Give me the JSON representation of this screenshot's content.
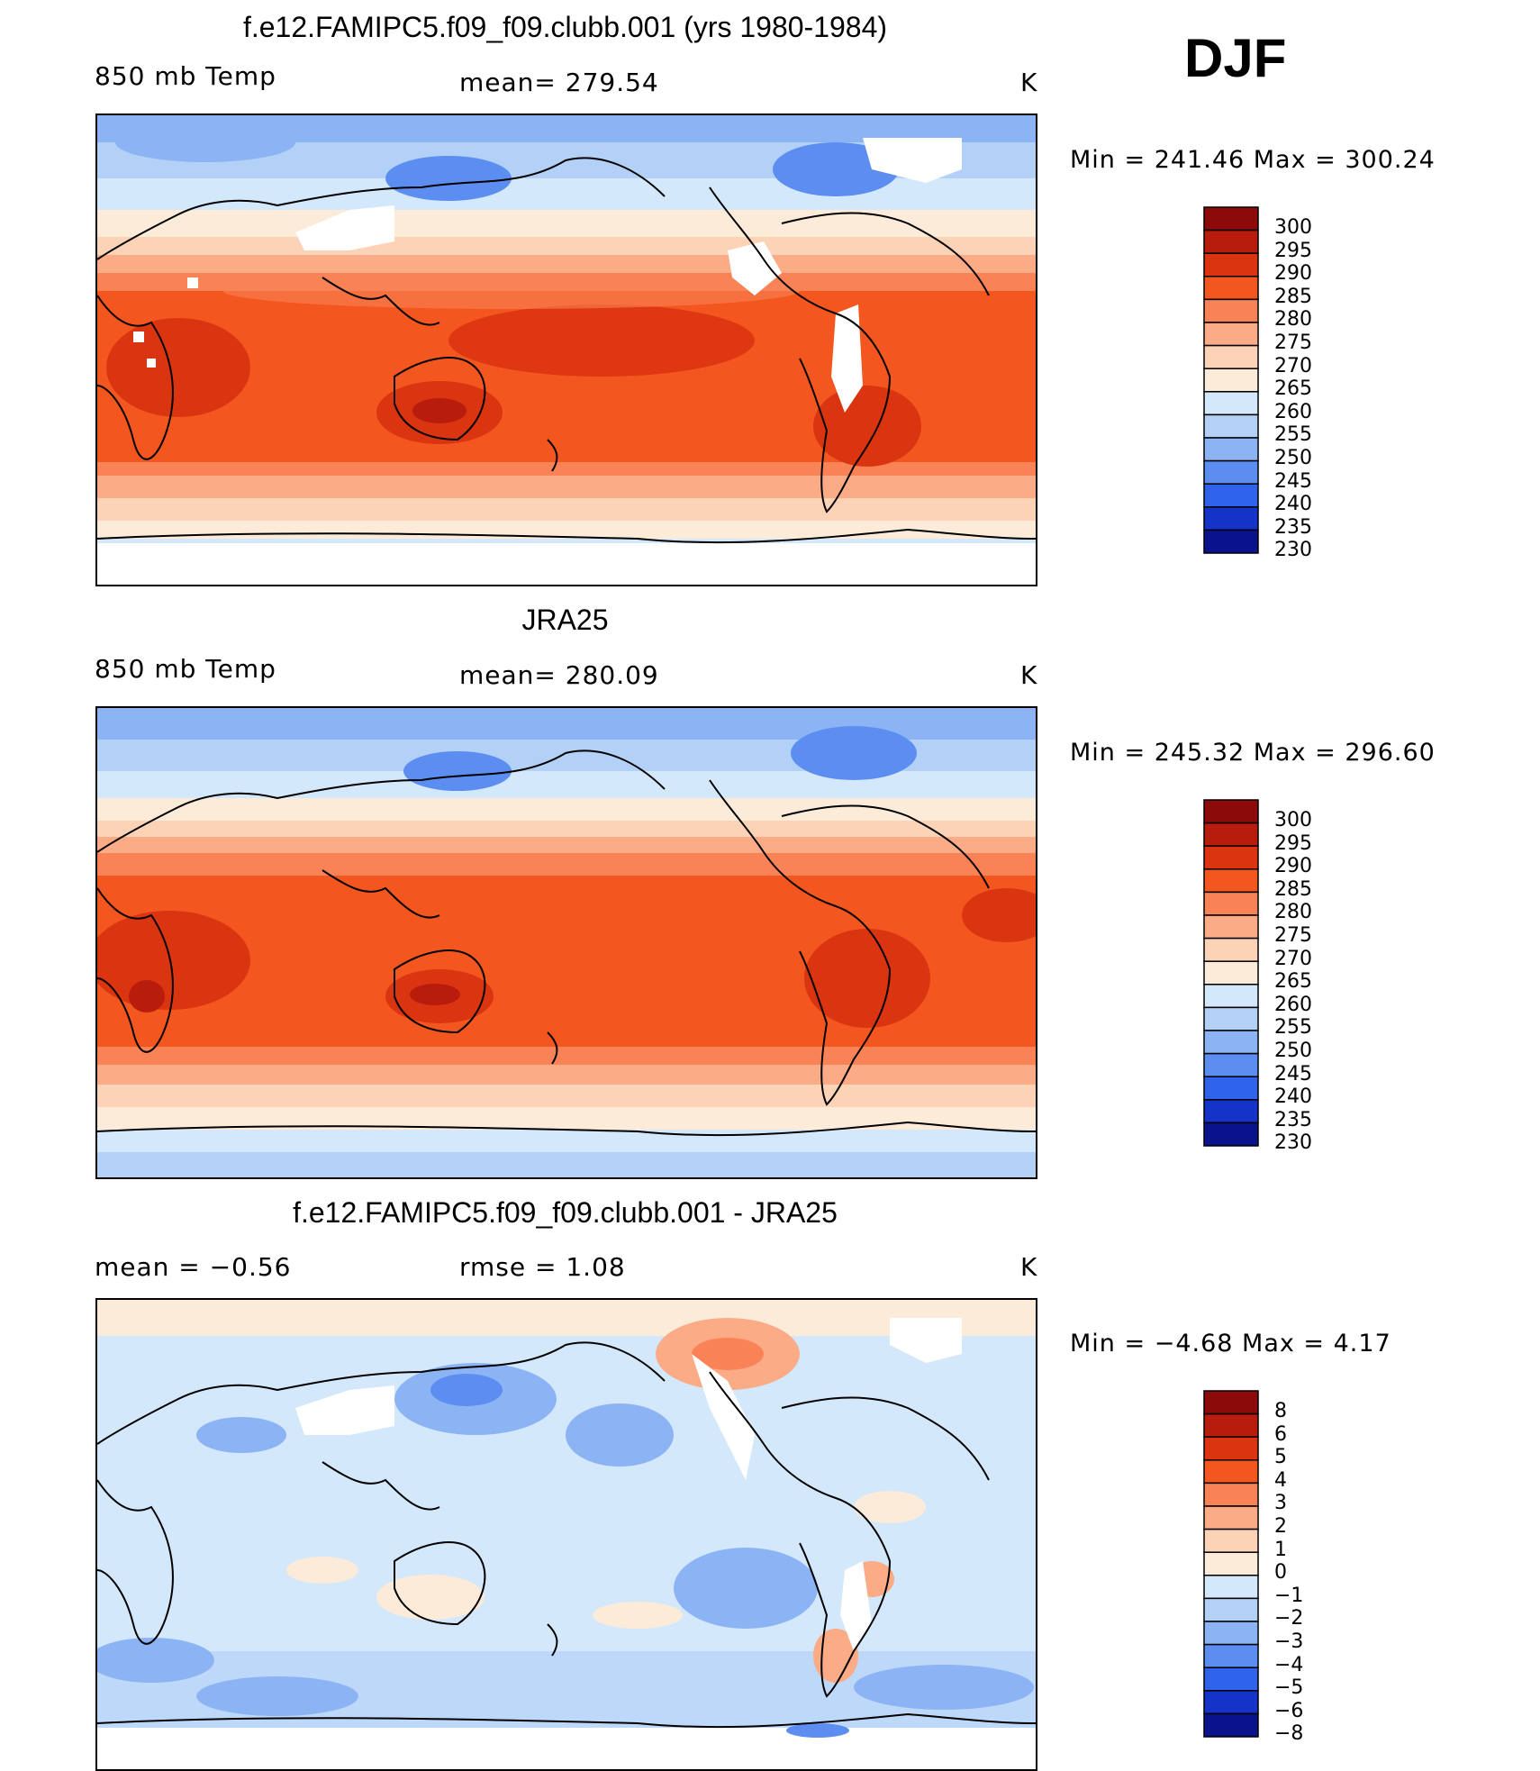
{
  "season": "DJF",
  "panels": [
    {
      "title": "f.e12.FAMIPC5.f09_f09.clubb.001 (yrs 1980-1984)",
      "left": "850 mb Temp",
      "center": "mean=  279.54",
      "units": "K",
      "minmax": "Min  =  241.46  Max  =  300.24",
      "colorbar": [
        "300",
        "295",
        "290",
        "285",
        "280",
        "275",
        "270",
        "265",
        "260",
        "255",
        "250",
        "245",
        "240",
        "235",
        "230"
      ],
      "colors": [
        "#8c0a0a",
        "#b81c0c",
        "#db3410",
        "#f4561f",
        "#f98356",
        "#fbab85",
        "#fdd3b8",
        "#fcebd9",
        "#d4e8fb",
        "#b3d1f7",
        "#8cb4f4",
        "#5b8ef0",
        "#2f63ec",
        "#1433c8",
        "#0a128c"
      ]
    },
    {
      "title": "JRA25",
      "left": "850 mb Temp",
      "center": "mean=  280.09",
      "units": "K",
      "minmax": "Min  =  245.32  Max  =  296.60",
      "colorbar": [
        "300",
        "295",
        "290",
        "285",
        "280",
        "275",
        "270",
        "265",
        "260",
        "255",
        "250",
        "245",
        "240",
        "235",
        "230"
      ],
      "colors": [
        "#8c0a0a",
        "#b81c0c",
        "#db3410",
        "#f4561f",
        "#f98356",
        "#fbab85",
        "#fdd3b8",
        "#fcebd9",
        "#d4e8fb",
        "#b3d1f7",
        "#8cb4f4",
        "#5b8ef0",
        "#2f63ec",
        "#1433c8",
        "#0a128c"
      ]
    },
    {
      "title": "f.e12.FAMIPC5.f09_f09.clubb.001 - JRA25",
      "left": "mean =    −0.56",
      "center": "rmse =     1.08",
      "units": "K",
      "minmax": "Min  =    −4.68  Max  =     4.17",
      "colorbar": [
        "8",
        "6",
        "5",
        "4",
        "3",
        "2",
        "1",
        "0",
        "−1",
        "−2",
        "−3",
        "−4",
        "−5",
        "−6",
        "−8"
      ],
      "colors": [
        "#8c0a0a",
        "#b81c0c",
        "#db3410",
        "#f4561f",
        "#f98356",
        "#fbab85",
        "#fdd3b8",
        "#fcebd9",
        "#d4e8fb",
        "#b3d1f7",
        "#8cb4f4",
        "#5b8ef0",
        "#2f63ec",
        "#1433c8",
        "#0a128c"
      ]
    }
  ]
}
